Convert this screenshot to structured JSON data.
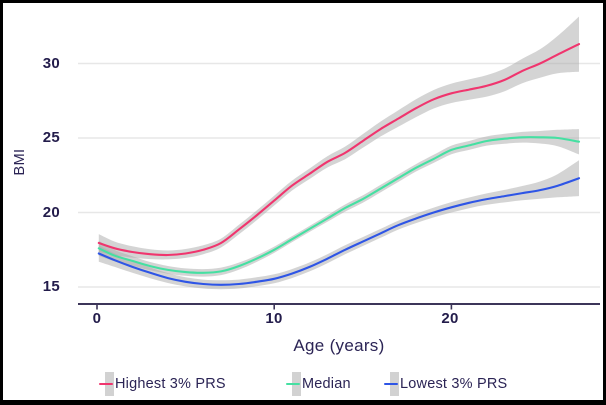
{
  "accent_colors": {
    "text_dark": "#2b2455",
    "axis_line": "#3c3559",
    "gridline": "#e7e7e7",
    "confidence_band": "#aaaaaa",
    "legend_marker_band": "#d2d2d2"
  },
  "chart_data": {
    "type": "line",
    "title": "",
    "xlabel": "Age (years)",
    "ylabel": "BMI",
    "xlim": [
      -1.1,
      28.4
    ],
    "ylim": [
      13.8,
      33.2
    ],
    "grid": "horizontal-only",
    "legend_position": "bottom",
    "xticks": [
      {
        "label": "0",
        "value": 0
      },
      {
        "label": "10",
        "value": 10
      },
      {
        "label": "20",
        "value": 20
      }
    ],
    "yticks": [
      {
        "label": "30",
        "value": 30
      },
      {
        "label": "25",
        "value": 25
      },
      {
        "label": "20",
        "value": 20
      },
      {
        "label": "15",
        "value": 15
      }
    ],
    "x": [
      0.1,
      1,
      2,
      3,
      4,
      5,
      6,
      7,
      8,
      9,
      10,
      11,
      12,
      13,
      14,
      15,
      16,
      17,
      18,
      19,
      20,
      21,
      22,
      23,
      24,
      25,
      26,
      27.2
    ],
    "series": [
      {
        "name": "Highest 3% PRS",
        "color": "#f0356e",
        "values": [
          17.95,
          17.6,
          17.35,
          17.2,
          17.15,
          17.25,
          17.5,
          17.95,
          18.85,
          19.8,
          20.8,
          21.8,
          22.6,
          23.4,
          24.0,
          24.8,
          25.6,
          26.3,
          27.0,
          27.6,
          28.0,
          28.25,
          28.5,
          28.9,
          29.5,
          30.0,
          30.6,
          31.3
        ],
        "ci_half_width": [
          0.6,
          0.45,
          0.38,
          0.33,
          0.3,
          0.3,
          0.3,
          0.3,
          0.32,
          0.33,
          0.33,
          0.33,
          0.35,
          0.38,
          0.42,
          0.46,
          0.5,
          0.55,
          0.6,
          0.62,
          0.65,
          0.68,
          0.72,
          0.76,
          0.82,
          0.95,
          1.25,
          1.85
        ]
      },
      {
        "name": "Median",
        "color": "#45e0a2",
        "values": [
          17.6,
          17.1,
          16.75,
          16.4,
          16.15,
          16.0,
          15.95,
          16.05,
          16.4,
          16.9,
          17.5,
          18.2,
          18.9,
          19.6,
          20.3,
          20.9,
          21.6,
          22.3,
          23.0,
          23.6,
          24.2,
          24.5,
          24.8,
          24.95,
          25.05,
          25.05,
          25.0,
          24.75
        ],
        "ci_half_width": [
          0.5,
          0.38,
          0.32,
          0.28,
          0.26,
          0.25,
          0.25,
          0.25,
          0.24,
          0.22,
          0.21,
          0.2,
          0.2,
          0.22,
          0.24,
          0.25,
          0.25,
          0.25,
          0.25,
          0.27,
          0.29,
          0.3,
          0.31,
          0.33,
          0.36,
          0.42,
          0.55,
          0.85
        ]
      },
      {
        "name": "Lowest 3% PRS",
        "color": "#2e55e6",
        "values": [
          17.25,
          16.8,
          16.35,
          15.95,
          15.6,
          15.35,
          15.2,
          15.15,
          15.2,
          15.35,
          15.55,
          15.9,
          16.35,
          16.9,
          17.5,
          18.05,
          18.6,
          19.15,
          19.6,
          20.0,
          20.35,
          20.65,
          20.9,
          21.1,
          21.3,
          21.5,
          21.8,
          22.3
        ],
        "ci_half_width": [
          0.55,
          0.45,
          0.4,
          0.36,
          0.33,
          0.31,
          0.3,
          0.3,
          0.3,
          0.3,
          0.3,
          0.3,
          0.3,
          0.3,
          0.3,
          0.3,
          0.3,
          0.3,
          0.31,
          0.33,
          0.35,
          0.36,
          0.38,
          0.42,
          0.48,
          0.58,
          0.78,
          1.2
        ]
      }
    ]
  }
}
